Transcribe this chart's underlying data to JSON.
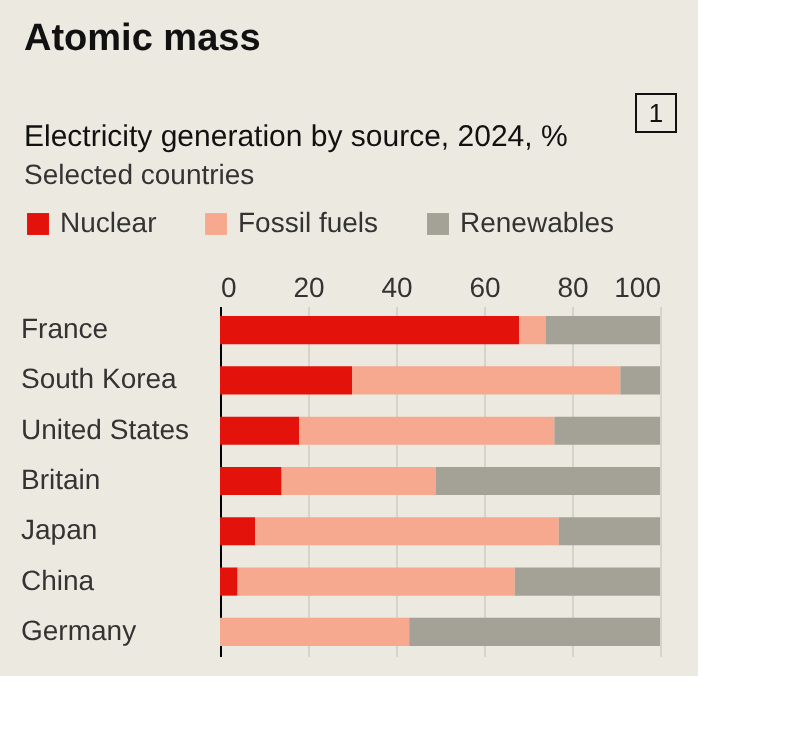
{
  "chart_data": {
    "type": "bar",
    "orientation": "horizontal",
    "stacked": true,
    "title": "Atomic mass",
    "subtitle": "Electricity generation by source, 2024, %",
    "annotations": [
      "Selected countries",
      "1"
    ],
    "categories": [
      "France",
      "South Korea",
      "United States",
      "Britain",
      "Japan",
      "China",
      "Germany"
    ],
    "series": [
      {
        "name": "Nuclear",
        "color": "#e3120b",
        "values": [
          68,
          30,
          18,
          14,
          8,
          4,
          0
        ]
      },
      {
        "name": "Fossil fuels",
        "color": "#f6a98f",
        "values": [
          6,
          61,
          58,
          35,
          69,
          63,
          43
        ]
      },
      {
        "name": "Renewables",
        "color": "#a4a196",
        "values": [
          26,
          9,
          24,
          51,
          23,
          33,
          57
        ]
      }
    ],
    "xlim": [
      0,
      100
    ],
    "xticks": [
      0,
      20,
      40,
      60,
      80,
      100
    ],
    "grid": "x",
    "legend": "top left"
  }
}
